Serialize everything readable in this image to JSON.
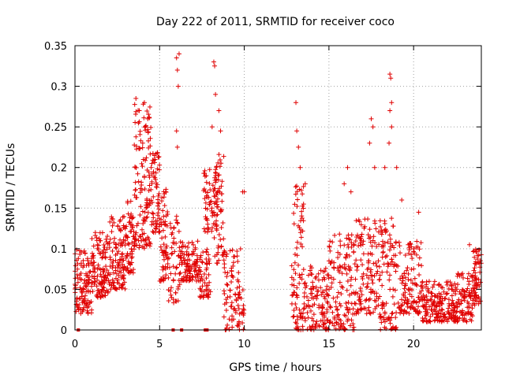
{
  "chart_data": {
    "type": "scatter",
    "title": "Day 222 of 2011, SRMTID for receiver coco",
    "xlabel": "GPS time / hours",
    "ylabel": "SRMTID / TECUs",
    "xlim": [
      0,
      24
    ],
    "ylim": [
      0,
      0.35
    ],
    "x_ticks": [
      0,
      5,
      10,
      15,
      20
    ],
    "x_tick_labels": [
      "0",
      "5",
      "10",
      "15",
      "20"
    ],
    "y_ticks": [
      0,
      0.05,
      0.1,
      0.15,
      0.2,
      0.25,
      0.3,
      0.35
    ],
    "y_tick_labels": [
      "0",
      "0.05",
      "0.1",
      "0.15",
      "0.2",
      "0.25",
      "0.3",
      "0.35"
    ],
    "grid": true,
    "marker": "+",
    "colors": {
      "series": "#e00000",
      "grid": "#a0a0a0",
      "axis": "#000000"
    },
    "cluster_envelope": [
      {
        "x_start": 0.0,
        "x_end": 1.0,
        "y_min": 0.02,
        "y_max": 0.1,
        "points": 110
      },
      {
        "x_start": 1.0,
        "x_end": 2.0,
        "y_min": 0.04,
        "y_max": 0.12,
        "points": 110
      },
      {
        "x_start": 2.0,
        "x_end": 3.0,
        "y_min": 0.05,
        "y_max": 0.14,
        "points": 110
      },
      {
        "x_start": 3.0,
        "x_end": 3.5,
        "y_min": 0.07,
        "y_max": 0.16,
        "points": 60
      },
      {
        "x_start": 3.5,
        "x_end": 4.5,
        "y_min": 0.1,
        "y_max": 0.28,
        "points": 130
      },
      {
        "x_start": 4.5,
        "x_end": 5.0,
        "y_min": 0.12,
        "y_max": 0.22,
        "points": 60
      },
      {
        "x_start": 5.0,
        "x_end": 5.5,
        "y_min": 0.06,
        "y_max": 0.18,
        "points": 60
      },
      {
        "x_start": 5.5,
        "x_end": 6.2,
        "y_min": 0.03,
        "y_max": 0.14,
        "points": 50
      },
      {
        "x_start": 6.2,
        "x_end": 7.3,
        "y_min": 0.06,
        "y_max": 0.11,
        "points": 100
      },
      {
        "x_start": 7.3,
        "x_end": 8.0,
        "y_min": 0.04,
        "y_max": 0.1,
        "points": 60
      },
      {
        "x_start": 7.6,
        "x_end": 8.4,
        "y_min": 0.12,
        "y_max": 0.2,
        "points": 60
      },
      {
        "x_start": 8.2,
        "x_end": 8.8,
        "y_min": 0.08,
        "y_max": 0.22,
        "points": 60
      },
      {
        "x_start": 8.8,
        "x_end": 10.0,
        "y_min": 0.0,
        "y_max": 0.1,
        "points": 90
      },
      {
        "x_start": 12.8,
        "x_end": 13.5,
        "y_min": 0.0,
        "y_max": 0.18,
        "points": 80
      },
      {
        "x_start": 13.5,
        "x_end": 15.0,
        "y_min": 0.0,
        "y_max": 0.08,
        "points": 120
      },
      {
        "x_start": 15.0,
        "x_end": 16.5,
        "y_min": 0.0,
        "y_max": 0.12,
        "points": 130
      },
      {
        "x_start": 16.5,
        "x_end": 18.0,
        "y_min": 0.02,
        "y_max": 0.14,
        "points": 130
      },
      {
        "x_start": 18.0,
        "x_end": 19.0,
        "y_min": 0.0,
        "y_max": 0.14,
        "points": 100
      },
      {
        "x_start": 19.0,
        "x_end": 20.5,
        "y_min": 0.02,
        "y_max": 0.11,
        "points": 120
      },
      {
        "x_start": 20.5,
        "x_end": 22.5,
        "y_min": 0.01,
        "y_max": 0.06,
        "points": 180
      },
      {
        "x_start": 22.5,
        "x_end": 23.5,
        "y_min": 0.01,
        "y_max": 0.07,
        "points": 90
      },
      {
        "x_start": 23.5,
        "x_end": 24.0,
        "y_min": 0.03,
        "y_max": 0.1,
        "points": 60
      }
    ],
    "notable_points": [
      {
        "x": 3.6,
        "y": 0.285
      },
      {
        "x": 3.8,
        "y": 0.27
      },
      {
        "x": 4.1,
        "y": 0.28
      },
      {
        "x": 4.3,
        "y": 0.26
      },
      {
        "x": 4.0,
        "y": 0.23
      },
      {
        "x": 4.5,
        "y": 0.2
      },
      {
        "x": 6.0,
        "y": 0.335
      },
      {
        "x": 6.05,
        "y": 0.32
      },
      {
        "x": 6.1,
        "y": 0.3
      },
      {
        "x": 6.15,
        "y": 0.34
      },
      {
        "x": 6.0,
        "y": 0.245
      },
      {
        "x": 6.05,
        "y": 0.225
      },
      {
        "x": 5.7,
        "y": 0.04
      },
      {
        "x": 8.2,
        "y": 0.33
      },
      {
        "x": 8.25,
        "y": 0.325
      },
      {
        "x": 8.3,
        "y": 0.29
      },
      {
        "x": 8.5,
        "y": 0.27
      },
      {
        "x": 8.6,
        "y": 0.245
      },
      {
        "x": 8.1,
        "y": 0.25
      },
      {
        "x": 9.9,
        "y": 0.17
      },
      {
        "x": 10.0,
        "y": 0.17
      },
      {
        "x": 13.05,
        "y": 0.28
      },
      {
        "x": 13.1,
        "y": 0.245
      },
      {
        "x": 13.2,
        "y": 0.225
      },
      {
        "x": 13.3,
        "y": 0.2
      },
      {
        "x": 13.6,
        "y": 0.18
      },
      {
        "x": 13.5,
        "y": 0.155
      },
      {
        "x": 15.9,
        "y": 0.18
      },
      {
        "x": 16.1,
        "y": 0.2
      },
      {
        "x": 16.3,
        "y": 0.17
      },
      {
        "x": 17.5,
        "y": 0.26
      },
      {
        "x": 17.6,
        "y": 0.25
      },
      {
        "x": 17.4,
        "y": 0.23
      },
      {
        "x": 17.7,
        "y": 0.2
      },
      {
        "x": 18.6,
        "y": 0.315
      },
      {
        "x": 18.65,
        "y": 0.31
      },
      {
        "x": 18.7,
        "y": 0.28
      },
      {
        "x": 18.6,
        "y": 0.27
      },
      {
        "x": 18.7,
        "y": 0.25
      },
      {
        "x": 18.55,
        "y": 0.23
      },
      {
        "x": 18.3,
        "y": 0.2
      },
      {
        "x": 19.0,
        "y": 0.2
      },
      {
        "x": 19.3,
        "y": 0.16
      },
      {
        "x": 20.3,
        "y": 0.145
      },
      {
        "x": 23.3,
        "y": 0.105
      }
    ],
    "axis_markers_x": [
      0.2,
      5.8,
      6.3,
      7.7,
      7.8
    ]
  }
}
